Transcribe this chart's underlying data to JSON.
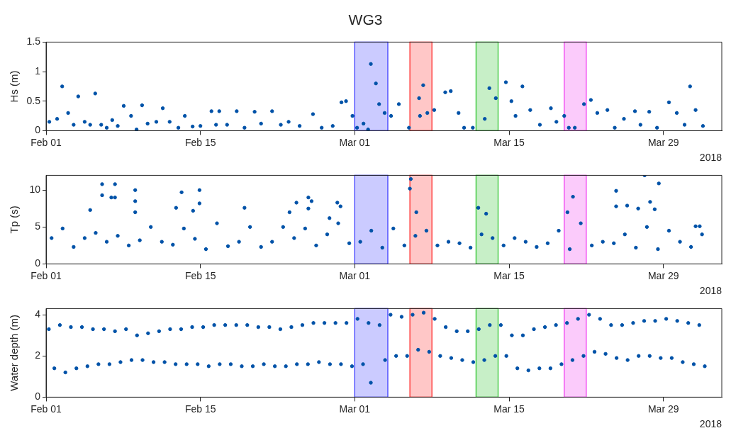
{
  "chart_data": [
    {
      "type": "scatter",
      "title": "WG3",
      "xlabel": "2018",
      "ylabel": "Hs (m)",
      "marker": "circle",
      "grid": false,
      "legend": false,
      "xlim": [
        "2018-02-01",
        "2018-04-03T07:00"
      ],
      "xticks": [
        {
          "value": "2018-02-01",
          "label": "Feb 01"
        },
        {
          "value": "2018-02-15",
          "label": "Feb 15"
        },
        {
          "value": "2018-03-01",
          "label": "Mar 01"
        },
        {
          "value": "2018-03-15",
          "label": "Mar 15"
        },
        {
          "value": "2018-03-29",
          "label": "Mar 29"
        }
      ],
      "ylim": [
        0,
        1.5
      ],
      "yticks": [
        0,
        0.5,
        1,
        1.5
      ],
      "bands": [
        {
          "axis": "x",
          "from": "2018-03-01",
          "to": "2018-03-04",
          "color": "#3030ff"
        },
        {
          "axis": "x",
          "from": "2018-03-06",
          "to": "2018-03-08",
          "color": "#ff2020"
        },
        {
          "axis": "x",
          "from": "2018-03-12",
          "to": "2018-03-14",
          "color": "#20c020"
        },
        {
          "axis": "x",
          "from": "2018-03-20",
          "to": "2018-03-22",
          "color": "#f030f0"
        }
      ],
      "series": [
        {
          "color": "#0052a8",
          "x": [
            "2018-02-01T07:00",
            "2018-02-02T00:00",
            "2018-02-02T11:00",
            "2018-02-03T00:00",
            "2018-02-03T12:00",
            "2018-02-03T22:00",
            "2018-02-04T12:00",
            "2018-02-05T00:00",
            "2018-02-05T11:00",
            "2018-02-06T00:00",
            "2018-02-06T12:00",
            "2018-02-07T00:00",
            "2018-02-07T12:00",
            "2018-02-08T01:00",
            "2018-02-08T17:00",
            "2018-02-09T05:00",
            "2018-02-09T17:00",
            "2018-02-10T05:00",
            "2018-02-11T00:00",
            "2018-02-11T14:00",
            "2018-02-12T05:00",
            "2018-02-13T00:00",
            "2018-02-13T14:00",
            "2018-02-14T07:00",
            "2018-02-15T00:00",
            "2018-02-16T00:00",
            "2018-02-16T10:00",
            "2018-02-16T17:00",
            "2018-02-17T10:00",
            "2018-02-18T07:00",
            "2018-02-19T00:00",
            "2018-02-19T22:00",
            "2018-02-20T12:00",
            "2018-02-21T12:00",
            "2018-02-22T07:00",
            "2018-02-23T00:00",
            "2018-02-24T00:00",
            "2018-02-25T05:00",
            "2018-02-26T00:00",
            "2018-02-27T00:00",
            "2018-02-27T19:00",
            "2018-02-28T05:00",
            "2018-02-28T19:00",
            "2018-03-01T05:00",
            "2018-03-01T19:00",
            "2018-03-02T05:00",
            "2018-03-02T11:00",
            "2018-03-02T22:00",
            "2018-03-03T05:00",
            "2018-03-03T17:00",
            "2018-03-04T07:00",
            "2018-03-05T00:00",
            "2018-03-05T22:00",
            "2018-03-06T20:00",
            "2018-03-06T22:00",
            "2018-03-07T05:00",
            "2018-03-07T14:00",
            "2018-03-08T05:00",
            "2018-03-09T05:00",
            "2018-03-09T17:00",
            "2018-03-10T10:00",
            "2018-03-10T22:00",
            "2018-03-11T17:00",
            "2018-03-12T19:00",
            "2018-03-13T05:00",
            "2018-03-13T19:00",
            "2018-03-14T17:00",
            "2018-03-15T05:00",
            "2018-03-15T14:00",
            "2018-03-16T05:00",
            "2018-03-16T22:00",
            "2018-03-17T19:00",
            "2018-03-18T19:00",
            "2018-03-19T07:00",
            "2018-03-20T00:00",
            "2018-03-20T10:00",
            "2018-03-20T23:00",
            "2018-03-21T19:00",
            "2018-03-22T10:00",
            "2018-03-23T00:00",
            "2018-03-23T22:00",
            "2018-03-24T14:00",
            "2018-03-25T10:00",
            "2018-03-26T10:00",
            "2018-03-26T22:00",
            "2018-03-27T17:00",
            "2018-03-28T10:00",
            "2018-03-29T12:00",
            "2018-03-30T05:00",
            "2018-03-30T22:00",
            "2018-03-31T10:00",
            "2018-03-31T22:00",
            "2018-04-01T14:00"
          ],
          "values": [
            0.15,
            0.2,
            0.75,
            0.3,
            0.1,
            0.58,
            0.15,
            0.1,
            0.63,
            0.1,
            0.05,
            0.18,
            0.08,
            0.42,
            0.25,
            0.02,
            0.43,
            0.12,
            0.15,
            0.38,
            0.15,
            0.05,
            0.25,
            0.07,
            0.08,
            0.33,
            0.1,
            0.33,
            0.1,
            0.33,
            0.05,
            0.32,
            0.12,
            0.33,
            0.1,
            0.15,
            0.08,
            0.28,
            0.05,
            0.08,
            0.48,
            0.5,
            0.25,
            0.05,
            0.12,
            0.02,
            1.13,
            0.8,
            0.45,
            0.3,
            0.25,
            0.45,
            0.05,
            0.55,
            0.25,
            0.77,
            0.3,
            0.35,
            0.65,
            0.67,
            0.3,
            0.05,
            0.05,
            0.2,
            0.72,
            0.55,
            0.82,
            0.5,
            0.25,
            0.75,
            0.35,
            0.1,
            0.38,
            0.15,
            0.25,
            0.05,
            0.05,
            0.45,
            0.52,
            0.3,
            0.35,
            0.05,
            0.2,
            0.33,
            0.1,
            0.32,
            0.05,
            0.48,
            0.3,
            0.1,
            0.75,
            0.35,
            0.08
          ]
        }
      ]
    },
    {
      "type": "scatter",
      "xlabel": "2018",
      "ylabel": "Tp (s)",
      "marker": "circle",
      "grid": false,
      "legend": false,
      "xlim": [
        "2018-02-01",
        "2018-04-03T07:00"
      ],
      "xticks": [
        {
          "value": "2018-02-01",
          "label": "Feb 01"
        },
        {
          "value": "2018-02-15",
          "label": "Feb 15"
        },
        {
          "value": "2018-03-01",
          "label": "Mar 01"
        },
        {
          "value": "2018-03-15",
          "label": "Mar 15"
        },
        {
          "value": "2018-03-29",
          "label": "Mar 29"
        }
      ],
      "ylim": [
        0,
        12
      ],
      "yticks": [
        0,
        5,
        10
      ],
      "bands": [
        {
          "axis": "x",
          "from": "2018-03-01",
          "to": "2018-03-04",
          "color": "#3030ff"
        },
        {
          "axis": "x",
          "from": "2018-03-06",
          "to": "2018-03-08",
          "color": "#ff2020"
        },
        {
          "axis": "x",
          "from": "2018-03-12",
          "to": "2018-03-14",
          "color": "#20c020"
        },
        {
          "axis": "x",
          "from": "2018-03-20",
          "to": "2018-03-22",
          "color": "#f030f0"
        }
      ],
      "series": [
        {
          "color": "#0052a8",
          "x": [
            "2018-02-01T12:00",
            "2018-02-02T12:00",
            "2018-02-03T12:00",
            "2018-02-04T12:00",
            "2018-02-05T12:00",
            "2018-02-06T12:00",
            "2018-02-07T12:00",
            "2018-02-08T12:00",
            "2018-02-09T12:00",
            "2018-02-10T12:00",
            "2018-02-11T12:00",
            "2018-02-12T12:00",
            "2018-02-13T12:00",
            "2018-02-14T12:00",
            "2018-02-15T12:00",
            "2018-02-16T12:00",
            "2018-02-17T12:00",
            "2018-02-18T12:00",
            "2018-02-19T12:00",
            "2018-02-20T12:00",
            "2018-02-21T12:00",
            "2018-02-22T12:00",
            "2018-02-23T12:00",
            "2018-02-24T12:00",
            "2018-02-25T12:00",
            "2018-02-26T12:00",
            "2018-02-27T12:00",
            "2018-02-28T12:00",
            "2018-03-01T12:00",
            "2018-03-02T12:00",
            "2018-03-03T12:00",
            "2018-03-04T12:00",
            "2018-03-05T12:00",
            "2018-03-06T12:00",
            "2018-03-07T12:00",
            "2018-03-08T12:00",
            "2018-03-09T12:00",
            "2018-03-10T12:00",
            "2018-03-11T12:00",
            "2018-03-12T12:00",
            "2018-03-13T12:00",
            "2018-03-14T12:00",
            "2018-03-15T12:00",
            "2018-03-16T12:00",
            "2018-03-17T12:00",
            "2018-03-18T12:00",
            "2018-03-19T12:00",
            "2018-03-20T12:00",
            "2018-03-21T12:00",
            "2018-03-22T12:00",
            "2018-03-23T12:00",
            "2018-03-24T12:00",
            "2018-03-25T12:00",
            "2018-03-26T12:00",
            "2018-03-27T12:00",
            "2018-03-28T12:00",
            "2018-03-29T12:00",
            "2018-03-30T12:00",
            "2018-03-31T12:00",
            "2018-04-01T12:00",
            "2018-02-05T00:00",
            "2018-02-06T02:00",
            "2018-02-06T02:00",
            "2018-02-06T22:00",
            "2018-02-07T06:00",
            "2018-02-07T06:00",
            "2018-02-09T02:00",
            "2018-02-09T02:00",
            "2018-02-09T02:00",
            "2018-02-12T19:00",
            "2018-02-13T07:00",
            "2018-02-14T08:00",
            "2018-02-14T22:00",
            "2018-02-14T22:00",
            "2018-02-19T00:00",
            "2018-02-23T02:00",
            "2018-02-23T17:00",
            "2018-02-24T19:00",
            "2018-02-24T19:00",
            "2018-02-25T02:00",
            "2018-02-26T17:00",
            "2018-02-27T10:00",
            "2018-02-27T17:00",
            "2018-03-06T02:00",
            "2018-03-06T00:00",
            "2018-03-06T14:00",
            "2018-03-12T05:00",
            "2018-03-12T22:00",
            "2018-03-20T07:00",
            "2018-03-20T19:00",
            "2018-03-24T17:00",
            "2018-03-24T17:00",
            "2018-03-25T17:00",
            "2018-03-26T17:00",
            "2018-03-27T07:00",
            "2018-03-27T19:00",
            "2018-03-28T05:00",
            "2018-03-28T14:00",
            "2018-03-31T22:00",
            "2018-04-01T07:00"
          ],
          "values": [
            3.5,
            4.8,
            2.3,
            3.5,
            4.2,
            3.0,
            3.8,
            2.5,
            3.2,
            5.0,
            3.0,
            2.6,
            4.8,
            3.4,
            2.0,
            5.5,
            2.4,
            3.0,
            5.0,
            2.3,
            3.0,
            5.0,
            3.5,
            4.8,
            2.5,
            4.0,
            5.5,
            2.8,
            3.0,
            4.5,
            2.2,
            4.8,
            2.5,
            3.8,
            4.5,
            2.5,
            3.0,
            2.8,
            2.2,
            4.0,
            3.5,
            2.5,
            3.5,
            3.0,
            2.3,
            2.8,
            4.5,
            2.0,
            5.5,
            2.5,
            3.0,
            2.8,
            4.0,
            2.2,
            5.0,
            2.0,
            4.5,
            3.0,
            2.3,
            4.0,
            7.3,
            10.8,
            9.3,
            9.0,
            10.8,
            9.0,
            10.0,
            8.5,
            7.0,
            7.6,
            9.7,
            7.2,
            10.0,
            8.2,
            7.6,
            7.0,
            8.3,
            9.0,
            7.5,
            8.5,
            6.2,
            8.3,
            7.8,
            11.5,
            10.2,
            7.0,
            7.6,
            6.8,
            7.0,
            9.1,
            9.9,
            7.8,
            7.9,
            7.5,
            12.0,
            8.4,
            7.4,
            10.9,
            5.1,
            5.1
          ]
        }
      ]
    },
    {
      "type": "scatter",
      "xlabel": "2018",
      "ylabel": "Water depth (m)",
      "marker": "circle",
      "grid": false,
      "legend": false,
      "xlim": [
        "2018-02-01",
        "2018-04-03T07:00"
      ],
      "xticks": [
        {
          "value": "2018-02-01",
          "label": "Feb 01"
        },
        {
          "value": "2018-02-15",
          "label": "Feb 15"
        },
        {
          "value": "2018-03-01",
          "label": "Mar 01"
        },
        {
          "value": "2018-03-15",
          "label": "Mar 15"
        },
        {
          "value": "2018-03-29",
          "label": "Mar 29"
        }
      ],
      "ylim": [
        0,
        4.3
      ],
      "yticks": [
        0,
        2,
        4
      ],
      "bands": [
        {
          "axis": "x",
          "from": "2018-03-01",
          "to": "2018-03-04",
          "color": "#3030ff"
        },
        {
          "axis": "x",
          "from": "2018-03-06",
          "to": "2018-03-08",
          "color": "#ff2020"
        },
        {
          "axis": "x",
          "from": "2018-03-12",
          "to": "2018-03-14",
          "color": "#20c020"
        },
        {
          "axis": "x",
          "from": "2018-03-20",
          "to": "2018-03-22",
          "color": "#f030f0"
        }
      ],
      "series": [
        {
          "color": "#0052a8",
          "x": [
            "2018-02-01T06:00",
            "2018-02-02T06:00",
            "2018-02-03T06:00",
            "2018-02-04T06:00",
            "2018-02-05T06:00",
            "2018-02-06T06:00",
            "2018-02-07T06:00",
            "2018-02-08T06:00",
            "2018-02-09T06:00",
            "2018-02-10T06:00",
            "2018-02-11T06:00",
            "2018-02-12T06:00",
            "2018-02-13T06:00",
            "2018-02-14T06:00",
            "2018-02-15T06:00",
            "2018-02-16T06:00",
            "2018-02-17T06:00",
            "2018-02-18T06:00",
            "2018-02-19T06:00",
            "2018-02-20T06:00",
            "2018-02-21T06:00",
            "2018-02-22T06:00",
            "2018-02-23T06:00",
            "2018-02-24T06:00",
            "2018-02-25T06:00",
            "2018-02-26T06:00",
            "2018-02-27T06:00",
            "2018-02-28T06:00",
            "2018-03-01T06:00",
            "2018-03-02T06:00",
            "2018-03-03T06:00",
            "2018-03-04T06:00",
            "2018-03-05T06:00",
            "2018-03-06T06:00",
            "2018-03-07T06:00",
            "2018-03-08T06:00",
            "2018-03-09T06:00",
            "2018-03-10T06:00",
            "2018-03-11T06:00",
            "2018-03-12T06:00",
            "2018-03-13T06:00",
            "2018-03-14T06:00",
            "2018-03-15T06:00",
            "2018-03-16T06:00",
            "2018-03-17T06:00",
            "2018-03-18T06:00",
            "2018-03-19T06:00",
            "2018-03-20T06:00",
            "2018-03-21T06:00",
            "2018-03-22T06:00",
            "2018-03-23T06:00",
            "2018-03-24T06:00",
            "2018-03-25T06:00",
            "2018-03-26T06:00",
            "2018-03-27T06:00",
            "2018-03-28T06:00",
            "2018-03-29T06:00",
            "2018-03-30T06:00",
            "2018-03-31T06:00",
            "2018-04-01T06:00",
            "2018-02-01T18:00",
            "2018-02-02T18:00",
            "2018-02-03T18:00",
            "2018-02-04T18:00",
            "2018-02-05T18:00",
            "2018-02-06T18:00",
            "2018-02-07T18:00",
            "2018-02-08T18:00",
            "2018-02-09T18:00",
            "2018-02-10T18:00",
            "2018-02-11T18:00",
            "2018-02-12T18:00",
            "2018-02-13T18:00",
            "2018-02-14T18:00",
            "2018-02-15T18:00",
            "2018-02-16T18:00",
            "2018-02-17T18:00",
            "2018-02-18T18:00",
            "2018-02-19T18:00",
            "2018-02-20T18:00",
            "2018-02-21T18:00",
            "2018-02-22T18:00",
            "2018-02-23T18:00",
            "2018-02-24T18:00",
            "2018-02-25T18:00",
            "2018-02-26T18:00",
            "2018-02-27T18:00",
            "2018-02-28T18:00",
            "2018-03-01T18:00",
            "2018-03-02T11:00",
            "2018-03-03T18:00",
            "2018-03-04T18:00",
            "2018-03-05T18:00",
            "2018-03-06T18:00",
            "2018-03-07T18:00",
            "2018-03-08T18:00",
            "2018-03-09T18:00",
            "2018-03-10T18:00",
            "2018-03-11T18:00",
            "2018-03-12T18:00",
            "2018-03-13T18:00",
            "2018-03-14T18:00",
            "2018-03-15T18:00",
            "2018-03-16T18:00",
            "2018-03-17T18:00",
            "2018-03-18T18:00",
            "2018-03-19T18:00",
            "2018-03-20T18:00",
            "2018-03-21T18:00",
            "2018-03-22T18:00",
            "2018-03-23T18:00",
            "2018-03-24T18:00",
            "2018-03-25T18:00",
            "2018-03-26T18:00",
            "2018-03-27T18:00",
            "2018-03-28T18:00",
            "2018-03-29T18:00",
            "2018-03-30T18:00",
            "2018-03-31T18:00",
            "2018-04-01T18:00"
          ],
          "values": [
            3.3,
            3.5,
            3.4,
            3.4,
            3.3,
            3.3,
            3.2,
            3.3,
            3.0,
            3.1,
            3.2,
            3.3,
            3.3,
            3.4,
            3.4,
            3.5,
            3.5,
            3.5,
            3.5,
            3.4,
            3.4,
            3.3,
            3.4,
            3.5,
            3.6,
            3.6,
            3.6,
            3.6,
            3.8,
            3.6,
            3.5,
            4.0,
            3.9,
            4.0,
            4.1,
            3.8,
            3.4,
            3.2,
            3.2,
            3.3,
            3.5,
            3.5,
            3.0,
            3.0,
            3.3,
            3.4,
            3.5,
            3.6,
            3.8,
            4.0,
            3.8,
            3.5,
            3.5,
            3.6,
            3.7,
            3.7,
            3.8,
            3.7,
            3.6,
            3.5,
            1.4,
            1.2,
            1.4,
            1.5,
            1.6,
            1.6,
            1.7,
            1.8,
            1.8,
            1.7,
            1.7,
            1.6,
            1.6,
            1.6,
            1.5,
            1.6,
            1.6,
            1.5,
            1.5,
            1.6,
            1.5,
            1.5,
            1.6,
            1.6,
            1.7,
            1.6,
            1.6,
            1.5,
            1.6,
            0.7,
            1.8,
            2.0,
            2.0,
            2.3,
            2.2,
            2.0,
            1.9,
            1.8,
            1.7,
            1.8,
            2.0,
            2.0,
            1.4,
            1.3,
            1.4,
            1.4,
            1.6,
            1.8,
            2.0,
            2.2,
            2.1,
            1.9,
            1.8,
            2.0,
            2.0,
            1.9,
            1.9,
            1.7,
            1.6,
            1.5
          ]
        }
      ]
    }
  ]
}
